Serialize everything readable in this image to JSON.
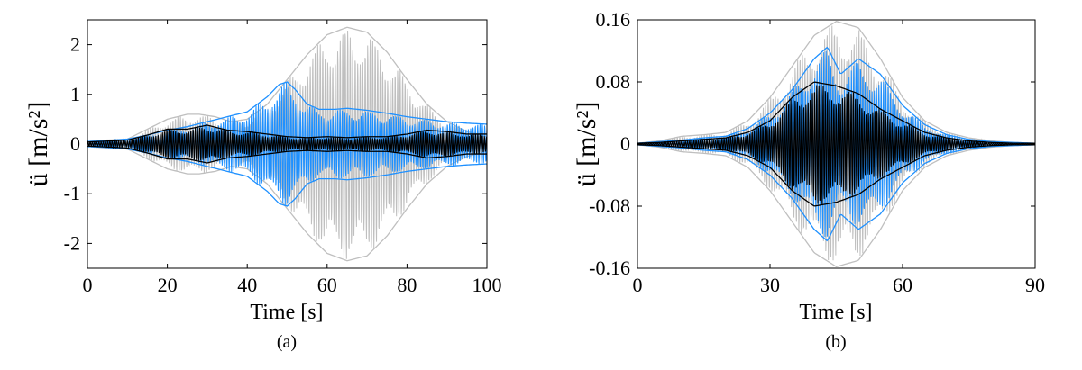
{
  "figure": {
    "panels": [
      "(a)",
      "(b)"
    ]
  },
  "chart_data": [
    {
      "type": "line",
      "panel_label": "(a)",
      "xlabel": "Time [s]",
      "ylabel": "ü [m/s²]",
      "xlim": [
        0,
        100
      ],
      "ylim": [
        -2.5,
        2.5
      ],
      "xticks": [
        0,
        20,
        40,
        60,
        80,
        100
      ],
      "xtick_labels": [
        "0",
        "20",
        "40",
        "60",
        "80",
        "100"
      ],
      "yticks": [
        2,
        1,
        0,
        -1,
        -2
      ],
      "ytick_labels": [
        "2",
        "1",
        "0",
        "-1",
        "-2"
      ],
      "grid": false,
      "legend": null,
      "series": [
        {
          "color": "#bfbfbf",
          "kind": "oscillating-envelope",
          "envelope_t": [
            0,
            5,
            10,
            15,
            20,
            25,
            28,
            32,
            36,
            40,
            45,
            50,
            55,
            60,
            65,
            70,
            75,
            80,
            85,
            90,
            95,
            100
          ],
          "envelope_amp": [
            0.05,
            0.08,
            0.1,
            0.3,
            0.5,
            0.6,
            0.6,
            0.55,
            0.45,
            0.5,
            0.8,
            1.3,
            1.8,
            2.2,
            2.35,
            2.25,
            1.85,
            1.3,
            0.8,
            0.45,
            0.25,
            0.15
          ]
        },
        {
          "color": "#1e90ff",
          "kind": "oscillating-envelope",
          "envelope_t": [
            0,
            5,
            10,
            15,
            20,
            25,
            30,
            35,
            40,
            45,
            48,
            50,
            52,
            55,
            58,
            62,
            65,
            70,
            75,
            80,
            85,
            90,
            95,
            100
          ],
          "envelope_amp": [
            0.05,
            0.07,
            0.1,
            0.18,
            0.28,
            0.35,
            0.45,
            0.55,
            0.65,
            0.95,
            1.2,
            1.25,
            1.1,
            0.8,
            0.7,
            0.7,
            0.72,
            0.68,
            0.62,
            0.55,
            0.5,
            0.45,
            0.42,
            0.4
          ]
        },
        {
          "color": "#000000",
          "kind": "oscillating-envelope",
          "envelope_t": [
            0,
            5,
            10,
            15,
            20,
            25,
            30,
            35,
            40,
            45,
            50,
            55,
            60,
            65,
            70,
            75,
            80,
            85,
            90,
            95,
            100
          ],
          "envelope_amp": [
            0.04,
            0.06,
            0.08,
            0.18,
            0.3,
            0.3,
            0.38,
            0.28,
            0.25,
            0.2,
            0.15,
            0.13,
            0.15,
            0.13,
            0.15,
            0.15,
            0.2,
            0.28,
            0.25,
            0.2,
            0.2
          ]
        }
      ]
    },
    {
      "type": "line",
      "panel_label": "(b)",
      "xlabel": "Time [s]",
      "ylabel": "ü [m/s²]",
      "xlim": [
        0,
        90
      ],
      "ylim": [
        -0.16,
        0.16
      ],
      "xticks": [
        0,
        30,
        60,
        90
      ],
      "xtick_labels": [
        "0",
        "30",
        "60",
        "90"
      ],
      "yticks": [
        0.16,
        0.08,
        0,
        -0.08,
        -0.16
      ],
      "ytick_labels": [
        "0.16",
        "0.08",
        "0",
        "-0.08",
        "-0.16"
      ],
      "grid": false,
      "legend": null,
      "series": [
        {
          "color": "#bfbfbf",
          "kind": "oscillating-envelope",
          "envelope_t": [
            0,
            5,
            10,
            15,
            20,
            25,
            30,
            35,
            40,
            45,
            50,
            55,
            60,
            65,
            70,
            75,
            80,
            85,
            90
          ],
          "envelope_amp": [
            0.001,
            0.004,
            0.01,
            0.012,
            0.015,
            0.03,
            0.06,
            0.1,
            0.14,
            0.158,
            0.15,
            0.11,
            0.06,
            0.03,
            0.015,
            0.008,
            0.004,
            0.002,
            0.001
          ]
        },
        {
          "color": "#1e90ff",
          "kind": "oscillating-envelope",
          "envelope_t": [
            0,
            5,
            10,
            15,
            20,
            25,
            30,
            35,
            40,
            43,
            46,
            50,
            55,
            60,
            65,
            70,
            75,
            80,
            85,
            90
          ],
          "envelope_amp": [
            0.001,
            0.003,
            0.005,
            0.008,
            0.01,
            0.02,
            0.04,
            0.07,
            0.11,
            0.125,
            0.09,
            0.11,
            0.09,
            0.05,
            0.025,
            0.012,
            0.006,
            0.003,
            0.002,
            0.001
          ]
        },
        {
          "color": "#000000",
          "kind": "oscillating-envelope",
          "envelope_t": [
            0,
            5,
            10,
            15,
            20,
            25,
            30,
            35,
            40,
            45,
            50,
            55,
            60,
            65,
            70,
            75,
            80,
            85,
            90
          ],
          "envelope_amp": [
            0.001,
            0.002,
            0.004,
            0.006,
            0.008,
            0.015,
            0.03,
            0.06,
            0.08,
            0.075,
            0.065,
            0.045,
            0.03,
            0.015,
            0.008,
            0.004,
            0.002,
            0.001,
            0.001
          ]
        }
      ]
    }
  ]
}
